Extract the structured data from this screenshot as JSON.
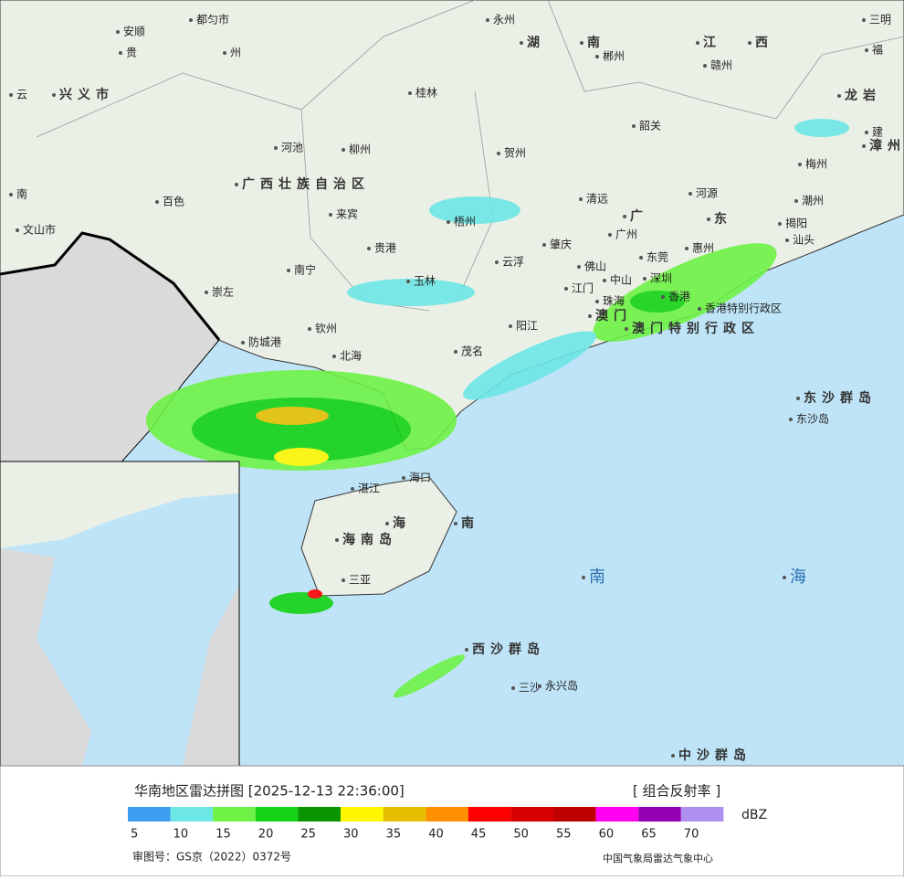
{
  "header": {
    "title": "华南地区雷达拼图 [2025-12-13 22:36:00]",
    "product": "[ 组合反射率 ]",
    "unit": "dBZ"
  },
  "legend": {
    "colors": [
      "#3d9ef0",
      "#6de6e6",
      "#6ef245",
      "#14d214",
      "#0a9600",
      "#fff600",
      "#e6c000",
      "#ff9100",
      "#ff0000",
      "#d60000",
      "#c00000",
      "#ff00f0",
      "#9600b4",
      "#ad90f0"
    ],
    "labels": [
      5,
      10,
      15,
      20,
      25,
      30,
      35,
      40,
      45,
      50,
      55,
      60,
      65,
      70
    ]
  },
  "footer": {
    "approval": "审图号：GS京（2022）0372号",
    "source": "中国气象局雷达气象中心"
  },
  "places": [
    "都匀市",
    "安顺",
    "贵",
    "州",
    "云",
    "兴义市",
    "南",
    "文山市",
    "永州",
    "湖",
    "南",
    "郴州",
    "江",
    "西",
    "赣州",
    "三明",
    "福",
    "龙岩",
    "建",
    "漳州",
    "桂林",
    "河池",
    "柳州",
    "贺州",
    "韶关",
    "梅州",
    "潮州",
    "揭阳",
    "汕头",
    "百色",
    "广西壮族自治区",
    "来宾",
    "梧州",
    "清远",
    "河源",
    "广",
    "东",
    "广州",
    "惠州",
    "贵港",
    "肇庆",
    "南宁",
    "云浮",
    "佛山",
    "东莞",
    "玉林",
    "崇左",
    "江门",
    "中山",
    "深圳",
    "香港",
    "香港特别行政区",
    "珠海",
    "澳门",
    "澳门特别行政区",
    "钦州",
    "防城港",
    "阳江",
    "北海",
    "茂名",
    "东沙群岛",
    "东沙岛",
    "湛江",
    "海口",
    "南",
    "海南岛",
    "海",
    "南",
    "海",
    "三亚",
    "西沙群岛",
    "三沙",
    "永兴岛",
    "中沙群岛"
  ]
}
